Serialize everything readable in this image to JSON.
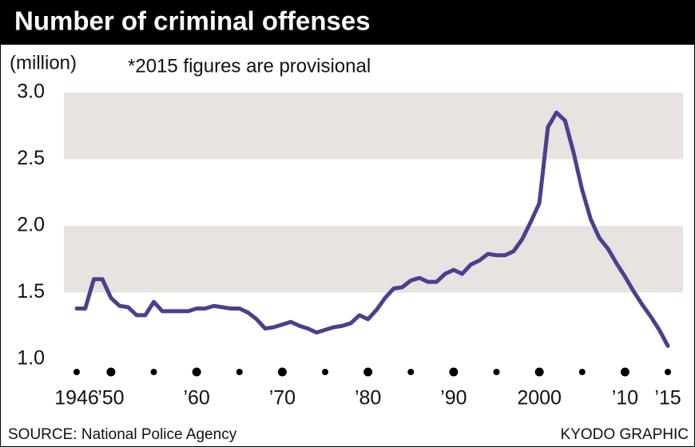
{
  "chart_data": {
    "type": "line",
    "title": "Number of criminal offenses",
    "y_unit": "(million)",
    "annotation": "*2015 figures are provisional",
    "source": "SOURCE: National Police Agency",
    "credit": "KYODO GRAPHIC",
    "x": [
      1946,
      1947,
      1948,
      1949,
      1950,
      1951,
      1952,
      1953,
      1954,
      1955,
      1956,
      1957,
      1958,
      1959,
      1960,
      1961,
      1962,
      1963,
      1964,
      1965,
      1966,
      1967,
      1968,
      1969,
      1970,
      1971,
      1972,
      1973,
      1974,
      1975,
      1976,
      1977,
      1978,
      1979,
      1980,
      1981,
      1982,
      1983,
      1984,
      1985,
      1986,
      1987,
      1988,
      1989,
      1990,
      1991,
      1992,
      1993,
      1994,
      1995,
      1996,
      1997,
      1998,
      1999,
      2000,
      2001,
      2002,
      2003,
      2004,
      2005,
      2006,
      2007,
      2008,
      2009,
      2010,
      2011,
      2012,
      2013,
      2014,
      2015
    ],
    "series": [
      {
        "name": "Number of criminal offenses",
        "color": "#4b3f8f",
        "values": [
          1.38,
          1.38,
          1.6,
          1.6,
          1.46,
          1.4,
          1.39,
          1.33,
          1.33,
          1.43,
          1.36,
          1.36,
          1.36,
          1.36,
          1.38,
          1.38,
          1.4,
          1.39,
          1.38,
          1.38,
          1.35,
          1.3,
          1.23,
          1.24,
          1.26,
          1.28,
          1.25,
          1.23,
          1.2,
          1.22,
          1.24,
          1.25,
          1.27,
          1.33,
          1.3,
          1.37,
          1.46,
          1.53,
          1.54,
          1.59,
          1.61,
          1.58,
          1.58,
          1.64,
          1.67,
          1.64,
          1.71,
          1.74,
          1.79,
          1.78,
          1.78,
          1.81,
          1.9,
          2.03,
          2.17,
          2.74,
          2.85,
          2.79,
          2.55,
          2.27,
          2.05,
          1.91,
          1.83,
          1.72,
          1.62,
          1.51,
          1.41,
          1.32,
          1.22,
          1.1
        ]
      }
    ],
    "xlim": [
      1946,
      2015
    ],
    "xticks": [
      1946,
      {
        "value": 1950,
        "label": "’50"
      },
      {
        "value": 1960,
        "label": "’60"
      },
      {
        "value": 1970,
        "label": "’70"
      },
      {
        "value": 1980,
        "label": "’80"
      },
      {
        "value": 1990,
        "label": "’90"
      },
      2000,
      {
        "value": 2010,
        "label": "’10"
      },
      {
        "value": 2015,
        "label": "’15"
      }
    ],
    "xminor_ticks": [
      1955,
      1965,
      1975,
      1985,
      1995,
      2005
    ],
    "ylim": [
      1.0,
      3.0
    ],
    "yticks": [
      {
        "value": 1.0,
        "label": "1.0"
      },
      1.5,
      {
        "value": 2.0,
        "label": "2.0"
      },
      2.5,
      {
        "value": 3.0,
        "label": "3.0"
      }
    ],
    "band_color": "#e8e2e0"
  }
}
